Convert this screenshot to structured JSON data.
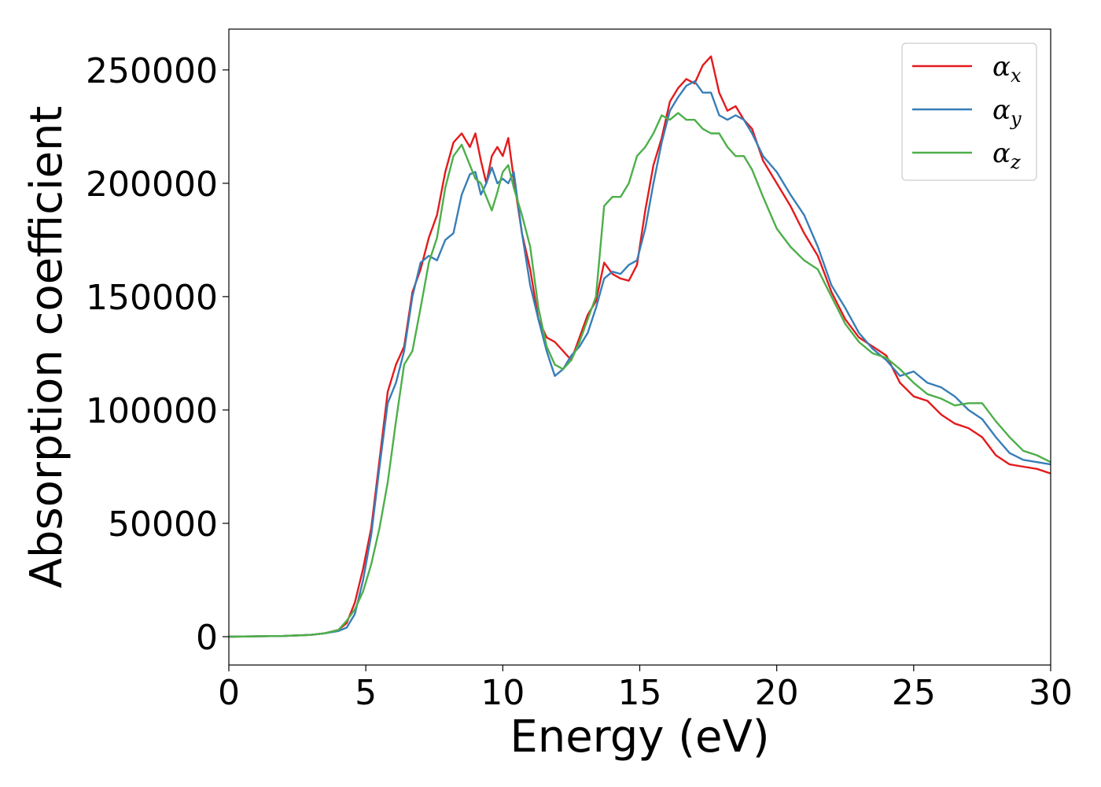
{
  "chart_data": {
    "type": "line",
    "xlabel": "Energy (eV)",
    "ylabel": "Absorption coefficient",
    "xlim": [
      0,
      30
    ],
    "ylim": [
      -12500,
      268000
    ],
    "xticks": [
      0,
      5,
      10,
      15,
      20,
      25,
      30
    ],
    "yticks": [
      0,
      50000,
      100000,
      150000,
      200000,
      250000
    ],
    "xtick_labels": [
      "0",
      "5",
      "10",
      "15",
      "20",
      "25",
      "30"
    ],
    "ytick_labels": [
      "0",
      "50000",
      "100000",
      "150000",
      "200000",
      "250000"
    ],
    "grid": false,
    "legend_position": "top-right",
    "series": [
      {
        "name": "α_x",
        "legend_base": "α",
        "legend_sub": "x",
        "color": "#e41a1c",
        "x": [
          0,
          2,
          3,
          3.5,
          4,
          4.3,
          4.6,
          4.9,
          5.2,
          5.5,
          5.8,
          6.1,
          6.4,
          6.7,
          7.0,
          7.3,
          7.6,
          7.9,
          8.2,
          8.5,
          8.8,
          9.0,
          9.2,
          9.4,
          9.6,
          9.8,
          10.0,
          10.2,
          10.4,
          10.7,
          11.0,
          11.3,
          11.6,
          11.9,
          12.2,
          12.5,
          12.8,
          13.1,
          13.4,
          13.7,
          14.0,
          14.3,
          14.6,
          14.9,
          15.2,
          15.5,
          15.8,
          16.1,
          16.4,
          16.7,
          17.0,
          17.3,
          17.6,
          17.9,
          18.2,
          18.5,
          18.8,
          19.1,
          19.5,
          20.0,
          20.5,
          21.0,
          21.5,
          22.0,
          22.5,
          23.0,
          23.5,
          24.0,
          24.5,
          25.0,
          25.5,
          26.0,
          26.5,
          27.0,
          27.5,
          28.0,
          28.5,
          29.0,
          29.5,
          30.0
        ],
        "y": [
          0,
          300,
          800,
          1500,
          3000,
          6000,
          15000,
          30000,
          48000,
          78000,
          108000,
          120000,
          128000,
          152000,
          162000,
          176000,
          186000,
          205000,
          218000,
          222000,
          216000,
          222000,
          210000,
          200000,
          212000,
          216000,
          212000,
          220000,
          202000,
          178000,
          162000,
          140000,
          132000,
          130000,
          126000,
          122000,
          132000,
          142000,
          148000,
          165000,
          160000,
          158000,
          157000,
          164000,
          188000,
          208000,
          220000,
          236000,
          242000,
          246000,
          244000,
          252000,
          256000,
          240000,
          232000,
          234000,
          228000,
          224000,
          210000,
          200000,
          190000,
          178000,
          168000,
          152000,
          140000,
          132000,
          128000,
          124000,
          112000,
          106000,
          104000,
          98000,
          94000,
          92000,
          88000,
          80000,
          76000,
          75000,
          74000,
          72000
        ]
      },
      {
        "name": "α_y",
        "legend_base": "α",
        "legend_sub": "y",
        "color": "#377eb8",
        "x": [
          0,
          2,
          3,
          3.5,
          4,
          4.3,
          4.6,
          4.9,
          5.2,
          5.5,
          5.8,
          6.1,
          6.4,
          6.7,
          7.0,
          7.3,
          7.6,
          7.9,
          8.2,
          8.5,
          8.8,
          9.0,
          9.2,
          9.4,
          9.6,
          9.8,
          10.0,
          10.2,
          10.4,
          10.7,
          11.0,
          11.3,
          11.6,
          11.9,
          12.2,
          12.5,
          12.8,
          13.1,
          13.4,
          13.7,
          14.0,
          14.3,
          14.6,
          14.9,
          15.2,
          15.5,
          15.8,
          16.1,
          16.4,
          16.7,
          17.0,
          17.3,
          17.6,
          17.9,
          18.2,
          18.5,
          18.8,
          19.1,
          19.5,
          20.0,
          20.5,
          21.0,
          21.5,
          22.0,
          22.5,
          23.0,
          23.5,
          24.0,
          24.5,
          25.0,
          25.5,
          26.0,
          26.5,
          27.0,
          27.5,
          28.0,
          28.5,
          29.0,
          29.5,
          30.0
        ],
        "y": [
          0,
          300,
          800,
          1500,
          2500,
          4000,
          10000,
          25000,
          45000,
          75000,
          103000,
          112000,
          126000,
          150000,
          165000,
          168000,
          166000,
          175000,
          178000,
          195000,
          204000,
          205000,
          195000,
          200000,
          207000,
          200000,
          202000,
          200000,
          205000,
          178000,
          155000,
          140000,
          126000,
          115000,
          118000,
          124000,
          128000,
          134000,
          145000,
          158000,
          161000,
          160000,
          164000,
          166000,
          180000,
          200000,
          218000,
          232000,
          238000,
          243000,
          245000,
          240000,
          240000,
          230000,
          228000,
          230000,
          228000,
          222000,
          212000,
          205000,
          195000,
          186000,
          172000,
          155000,
          145000,
          134000,
          127000,
          122000,
          115000,
          117000,
          112000,
          110000,
          106000,
          100000,
          96000,
          88000,
          81000,
          78000,
          77000,
          76000
        ]
      },
      {
        "name": "α_z",
        "legend_base": "α",
        "legend_sub": "z",
        "color": "#4daf4a",
        "x": [
          0,
          2,
          3,
          3.5,
          4,
          4.3,
          4.6,
          4.9,
          5.2,
          5.5,
          5.8,
          6.1,
          6.4,
          6.7,
          7.0,
          7.3,
          7.6,
          7.9,
          8.2,
          8.5,
          8.8,
          9.0,
          9.2,
          9.4,
          9.6,
          9.8,
          10.0,
          10.2,
          10.4,
          10.7,
          11.0,
          11.3,
          11.6,
          11.9,
          12.2,
          12.5,
          12.8,
          13.1,
          13.4,
          13.7,
          14.0,
          14.3,
          14.6,
          14.9,
          15.2,
          15.5,
          15.8,
          16.1,
          16.4,
          16.7,
          17.0,
          17.3,
          17.6,
          17.9,
          18.2,
          18.5,
          18.8,
          19.1,
          19.5,
          20.0,
          20.5,
          21.0,
          21.5,
          22.0,
          22.5,
          23.0,
          23.5,
          24.0,
          24.5,
          25.0,
          25.5,
          26.0,
          26.5,
          27.0,
          27.5,
          28.0,
          28.5,
          29.0,
          29.5,
          30.0
        ],
        "y": [
          0,
          300,
          800,
          1500,
          3000,
          7000,
          12000,
          20000,
          32000,
          48000,
          68000,
          95000,
          120000,
          126000,
          145000,
          165000,
          176000,
          198000,
          212000,
          217000,
          208000,
          202000,
          200000,
          194000,
          188000,
          196000,
          205000,
          208000,
          198000,
          186000,
          172000,
          145000,
          128000,
          120000,
          118000,
          122000,
          130000,
          140000,
          150000,
          190000,
          194000,
          194000,
          200000,
          212000,
          216000,
          222000,
          230000,
          228000,
          231000,
          228000,
          228000,
          224000,
          222000,
          222000,
          216000,
          212000,
          212000,
          206000,
          194000,
          180000,
          172000,
          166000,
          162000,
          150000,
          138000,
          130000,
          125000,
          123000,
          118000,
          112000,
          107000,
          105000,
          102000,
          103000,
          103000,
          95000,
          88000,
          82000,
          80000,
          77000
        ]
      }
    ]
  }
}
